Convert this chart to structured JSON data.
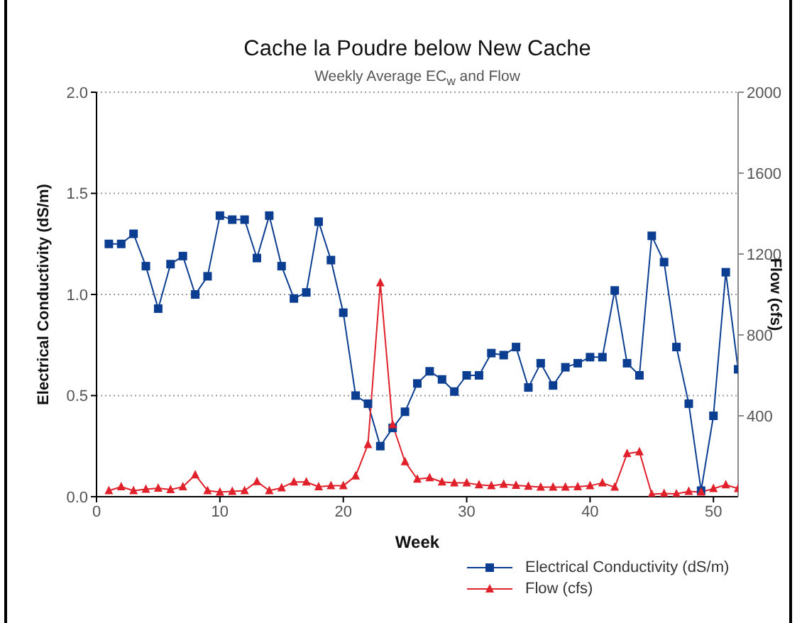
{
  "chart_data": {
    "type": "line",
    "title": "Cache la Poudre below New Cache",
    "subtitle": "Weekly Average EC$_{w}$ and Flow",
    "xlabel": "Week",
    "ylabel": "Electrical Conductivity (dS/m)",
    "y2label": "Flow (cfs)",
    "x": [
      1,
      2,
      3,
      4,
      5,
      6,
      7,
      8,
      9,
      10,
      11,
      12,
      13,
      14,
      15,
      16,
      17,
      18,
      19,
      20,
      21,
      22,
      23,
      24,
      25,
      26,
      27,
      28,
      29,
      30,
      31,
      32,
      33,
      34,
      35,
      36,
      37,
      38,
      39,
      40,
      41,
      42,
      43,
      44,
      45,
      46,
      47,
      48,
      49,
      50,
      51,
      52
    ],
    "series": [
      {
        "name": "Electrical Conductivity (dS/m)",
        "color": "#0b3d91",
        "marker": "square",
        "values": [
          1.25,
          1.25,
          1.3,
          1.14,
          0.93,
          1.15,
          1.19,
          1.0,
          1.09,
          1.39,
          1.37,
          1.37,
          1.18,
          1.39,
          1.14,
          0.98,
          1.01,
          1.36,
          1.17,
          0.91,
          0.5,
          0.46,
          0.25,
          0.34,
          0.42,
          0.56,
          0.62,
          0.58,
          0.52,
          0.6,
          0.6,
          0.71,
          0.7,
          0.74,
          0.54,
          0.66,
          0.55,
          0.64,
          0.66,
          0.69,
          0.69,
          1.02,
          0.66,
          0.6,
          1.29,
          1.16,
          0.74,
          0.46,
          0.03,
          0.4,
          1.11,
          0.63
        ]
      },
      {
        "name": "Flow (cfs)",
        "color": "#e0202a",
        "marker": "triangle",
        "axis": "y2",
        "values": [
          30,
          49,
          30,
          37,
          42,
          35,
          49,
          108,
          30,
          23,
          26,
          30,
          75,
          30,
          44,
          73,
          73,
          49,
          54,
          54,
          103,
          258,
          1058,
          356,
          173,
          87,
          94,
          73,
          68,
          68,
          59,
          54,
          61,
          56,
          52,
          47,
          47,
          47,
          49,
          54,
          68,
          47,
          213,
          222,
          12,
          16,
          14,
          26,
          23,
          40,
          59,
          40
        ]
      }
    ],
    "xlim": [
      0,
      52
    ],
    "xticks": [
      0,
      10,
      20,
      30,
      40,
      50
    ],
    "ylim": [
      0,
      2
    ],
    "yticks": [
      {
        "value": 0,
        "label": "0.0"
      },
      0.5,
      {
        "value": 1,
        "label": "1.0"
      },
      1.5,
      {
        "value": 2,
        "label": "2.0"
      }
    ],
    "y2lim": [
      0,
      2000
    ],
    "y2ticks": [
      400,
      800,
      1200,
      1600,
      2000
    ],
    "grid": "y",
    "legend": "bottom right"
  }
}
